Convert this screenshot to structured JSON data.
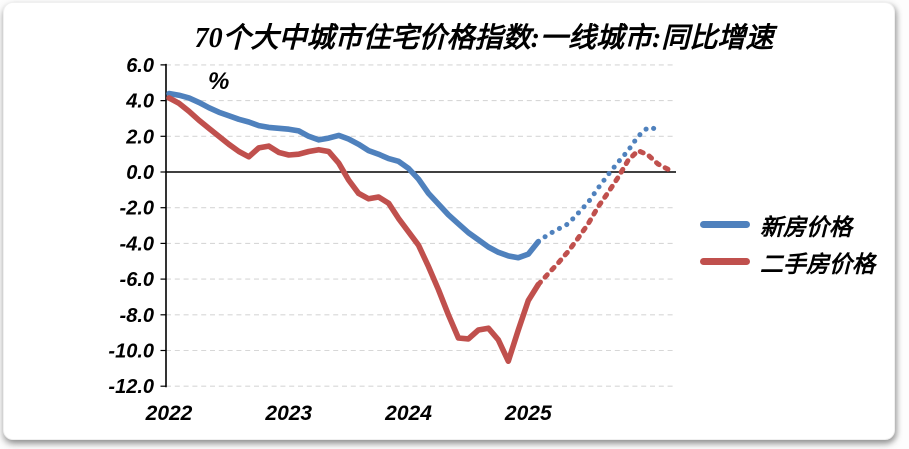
{
  "title": "70个大中城市住宅价格指数:一线城市:同比增速",
  "unit_label": "%",
  "legend": {
    "items": [
      {
        "label": "新房价格"
      },
      {
        "label": "二手房价格"
      }
    ]
  },
  "x_axis": {
    "tick_labels": [
      "2022",
      "2023",
      "2024",
      "2025"
    ]
  },
  "y_axis": {
    "tick_labels": [
      "6.0",
      "4.0",
      "2.0",
      "0.0",
      "-2.0",
      "-4.0",
      "-6.0",
      "-8.0",
      "-10.0",
      "-12.0"
    ]
  },
  "chart_data": {
    "type": "line",
    "title": "70个大中城市住宅价格指数:一线城市:同比增速",
    "ylabel": "%",
    "ylim": [
      -12.0,
      6.0
    ],
    "y_tick_step": 2.0,
    "grid": "horizontal-dashed",
    "zero_line": true,
    "legend_position": "right",
    "x_start_month": "2022-01",
    "x_tick_labels": [
      "2022",
      "2023",
      "2024",
      "2025"
    ],
    "solid_through_month": "2025-02",
    "dotted_from_month": "2025-03",
    "series": [
      {
        "name": "新房价格",
        "color": "#4F81BD",
        "line_style": "solid-then-dotted",
        "end_month": "2026-02",
        "values": [
          4.4,
          4.3,
          4.15,
          3.9,
          3.6,
          3.35,
          3.15,
          2.95,
          2.8,
          2.6,
          2.5,
          2.45,
          2.4,
          2.3,
          2.0,
          1.8,
          1.9,
          2.05,
          1.85,
          1.55,
          1.2,
          1.0,
          0.75,
          0.6,
          0.2,
          -0.4,
          -1.2,
          -1.8,
          -2.4,
          -2.9,
          -3.4,
          -3.8,
          -4.2,
          -4.5,
          -4.7,
          -4.8,
          -4.6,
          -3.9,
          -3.5,
          -3.2,
          -2.9,
          -2.3,
          -1.7,
          -0.9,
          -0.15,
          0.55,
          1.2,
          2.0,
          2.5,
          2.4
        ]
      },
      {
        "name": "二手房价格",
        "color": "#C0504D",
        "line_style": "solid-then-dotted",
        "end_month": "2026-03",
        "values": [
          4.15,
          3.85,
          3.4,
          2.9,
          2.45,
          2.0,
          1.55,
          1.15,
          0.85,
          1.35,
          1.45,
          1.1,
          0.95,
          1.0,
          1.15,
          1.25,
          1.15,
          0.5,
          -0.45,
          -1.2,
          -1.5,
          -1.4,
          -1.75,
          -2.6,
          -3.35,
          -4.1,
          -5.3,
          -6.6,
          -8.0,
          -9.3,
          -9.35,
          -8.85,
          -8.75,
          -9.4,
          -10.6,
          -8.85,
          -7.2,
          -6.3,
          -5.7,
          -5.1,
          -4.45,
          -3.7,
          -2.9,
          -1.95,
          -1.15,
          -0.3,
          0.65,
          1.2,
          0.95,
          0.45,
          0.15
        ]
      }
    ]
  }
}
